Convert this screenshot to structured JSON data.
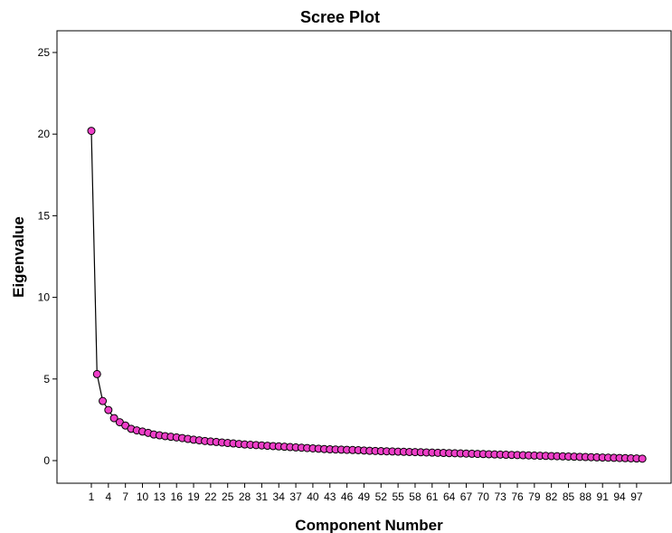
{
  "chart_data": {
    "type": "line",
    "title": "Scree Plot",
    "xlabel": "Component Number",
    "ylabel": "Eigenvalue",
    "xlim": [
      1,
      98
    ],
    "ylim": [
      0,
      25
    ],
    "y_ticks": [
      0,
      5,
      10,
      15,
      20,
      25
    ],
    "x_ticks": [
      1,
      4,
      7,
      10,
      13,
      16,
      19,
      22,
      25,
      28,
      31,
      34,
      37,
      40,
      43,
      46,
      49,
      52,
      55,
      58,
      61,
      64,
      67,
      70,
      73,
      76,
      79,
      82,
      85,
      88,
      91,
      94,
      97
    ],
    "grid": false,
    "legend": "none",
    "series": [
      {
        "marker": "circle",
        "color": "#EE3FC8",
        "line_color": "#000000",
        "x": [
          1,
          2,
          3,
          4,
          5,
          6,
          7,
          8,
          9,
          10,
          11,
          12,
          13,
          14,
          15,
          16,
          17,
          18,
          19,
          20,
          21,
          22,
          23,
          24,
          25,
          26,
          27,
          28,
          29,
          30,
          31,
          32,
          33,
          34,
          35,
          36,
          37,
          38,
          39,
          40,
          41,
          42,
          43,
          44,
          45,
          46,
          47,
          48,
          49,
          50,
          51,
          52,
          53,
          54,
          55,
          56,
          57,
          58,
          59,
          60,
          61,
          62,
          63,
          64,
          65,
          66,
          67,
          68,
          69,
          70,
          71,
          72,
          73,
          74,
          75,
          76,
          77,
          78,
          79,
          80,
          81,
          82,
          83,
          84,
          85,
          86,
          87,
          88,
          89,
          90,
          91,
          92,
          93,
          94,
          95,
          96,
          97,
          98
        ],
        "values": [
          20.2,
          5.3,
          3.65,
          3.1,
          2.6,
          2.35,
          2.15,
          1.95,
          1.85,
          1.78,
          1.7,
          1.6,
          1.55,
          1.5,
          1.46,
          1.42,
          1.38,
          1.33,
          1.28,
          1.24,
          1.2,
          1.17,
          1.14,
          1.11,
          1.08,
          1.05,
          1.02,
          0.99,
          0.97,
          0.95,
          0.93,
          0.91,
          0.89,
          0.87,
          0.85,
          0.83,
          0.81,
          0.79,
          0.77,
          0.75,
          0.73,
          0.71,
          0.69,
          0.68,
          0.67,
          0.66,
          0.65,
          0.64,
          0.62,
          0.6,
          0.59,
          0.58,
          0.57,
          0.56,
          0.55,
          0.54,
          0.53,
          0.52,
          0.51,
          0.5,
          0.49,
          0.48,
          0.47,
          0.46,
          0.45,
          0.44,
          0.43,
          0.42,
          0.41,
          0.4,
          0.39,
          0.38,
          0.37,
          0.36,
          0.35,
          0.34,
          0.33,
          0.32,
          0.31,
          0.3,
          0.29,
          0.28,
          0.27,
          0.26,
          0.25,
          0.24,
          0.23,
          0.22,
          0.21,
          0.2,
          0.19,
          0.18,
          0.17,
          0.16,
          0.15,
          0.14,
          0.13,
          0.12
        ]
      }
    ]
  }
}
